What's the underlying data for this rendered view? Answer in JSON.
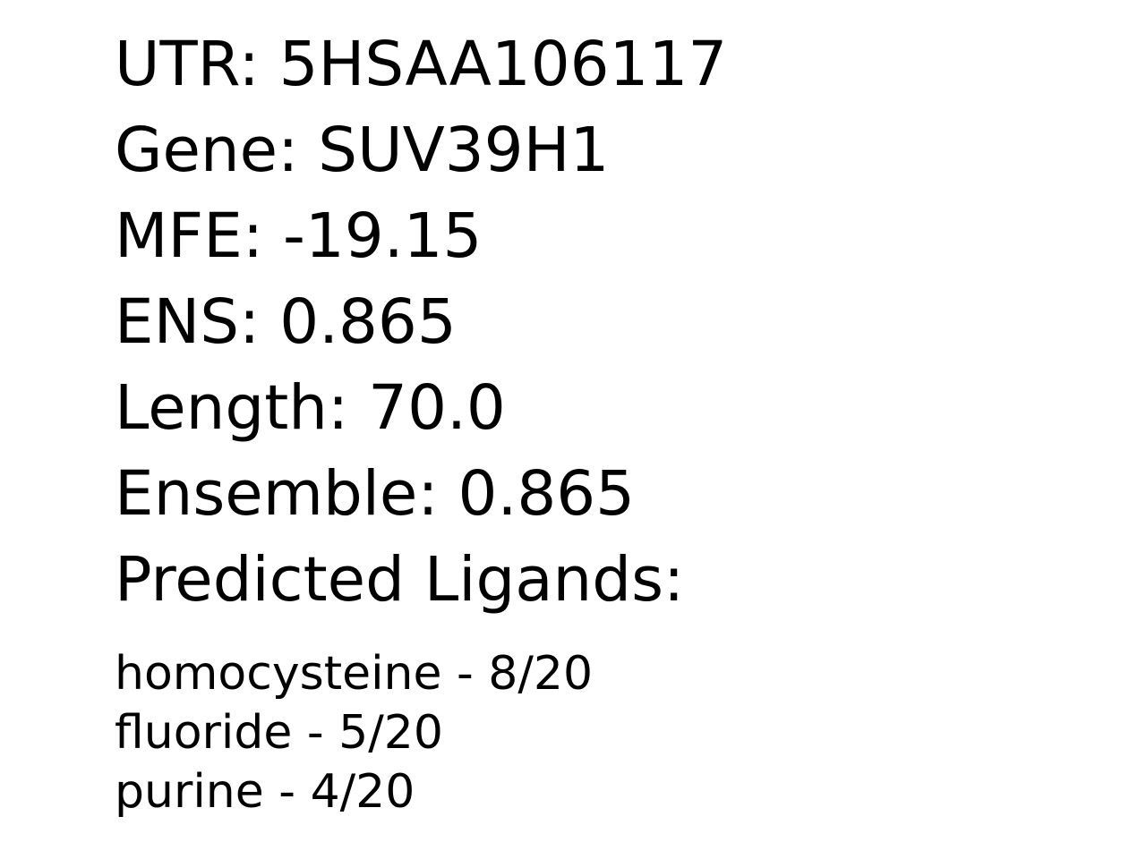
{
  "fields": {
    "utr": "UTR: 5HSAA106117",
    "gene": "Gene: SUV39H1",
    "mfe": "MFE: -19.15",
    "ens": "ENS: 0.865",
    "length": "Length: 70.0",
    "ensemble": "Ensemble: 0.865",
    "predicted_ligands_heading": "Predicted Ligands:"
  },
  "ligands": [
    "homocysteine - 8/20",
    "fluoride - 5/20",
    "purine - 4/20"
  ]
}
